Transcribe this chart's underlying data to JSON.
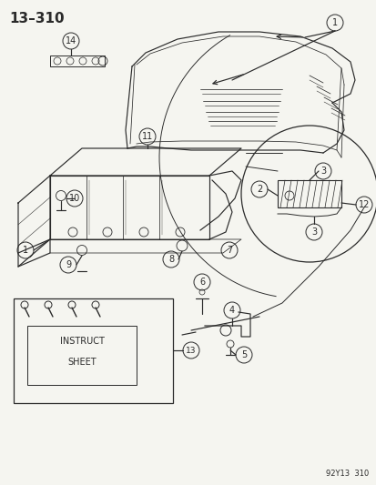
{
  "title": "13–310",
  "footer": "92Y13  310",
  "bg_color": "#f5f5f0",
  "line_color": "#2a2a2a",
  "text_color": "#2a2a2a",
  "title_fontsize": 11,
  "fig_width": 4.14,
  "fig_height": 5.33,
  "dpi": 100
}
